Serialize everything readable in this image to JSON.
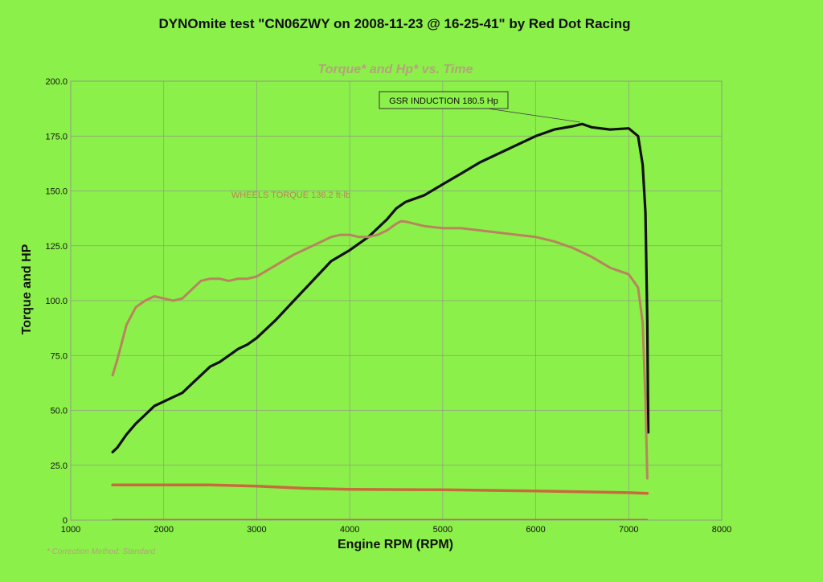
{
  "chart_data": {
    "type": "line",
    "title": "DYNOmite test \"CN06ZWY on 2008-11-23 @ 16-25-41\" by Red Dot Racing",
    "subtitle": "Torque* and Hp* vs. Time",
    "xlabel": "Engine RPM (RPM)",
    "ylabel": "Torque and HP",
    "xlim": [
      1000,
      8000
    ],
    "ylim": [
      0,
      200
    ],
    "xticks": [
      "1000",
      "2000",
      "3000",
      "4000",
      "5000",
      "6000",
      "7000",
      "8000"
    ],
    "yticks": [
      "0",
      "25.0",
      "50.0",
      "75.0",
      "100.0",
      "125.0",
      "150.0",
      "175.0",
      "200.0"
    ],
    "grid": true,
    "legend": "none",
    "series": [
      {
        "color": "#111111",
        "x": [
          1450,
          1500,
          1600,
          1700,
          1800,
          1900,
          2000,
          2100,
          2200,
          2300,
          2400,
          2500,
          2600,
          2700,
          2800,
          2900,
          3000,
          3200,
          3400,
          3600,
          3800,
          4000,
          4200,
          4400,
          4500,
          4600,
          4800,
          5000,
          5200,
          5400,
          5600,
          5800,
          6000,
          6200,
          6400,
          6500,
          6600,
          6800,
          7000,
          7100,
          7150,
          7180,
          7200,
          7210
        ],
        "values": [
          31,
          33,
          39,
          44,
          48,
          52,
          54,
          56,
          58,
          62,
          66,
          70,
          72,
          75,
          78,
          80,
          83,
          91,
          100,
          109,
          118,
          123,
          129,
          137,
          142,
          145,
          148,
          153,
          158,
          163,
          167,
          171,
          175,
          178,
          179.5,
          180.5,
          179,
          178,
          178.5,
          175,
          162,
          140,
          90,
          40
        ]
      },
      {
        "color": "#b8845e",
        "x": [
          1450,
          1500,
          1600,
          1700,
          1800,
          1900,
          2000,
          2100,
          2200,
          2300,
          2400,
          2500,
          2600,
          2700,
          2800,
          2900,
          3000,
          3200,
          3400,
          3600,
          3800,
          3900,
          4000,
          4100,
          4200,
          4300,
          4400,
          4500,
          4550,
          4600,
          4800,
          5000,
          5200,
          5400,
          5600,
          5800,
          6000,
          6200,
          6400,
          6600,
          6800,
          7000,
          7100,
          7150,
          7180,
          7200
        ],
        "values": [
          66,
          73,
          89,
          97,
          100,
          102,
          101,
          100,
          101,
          105,
          109,
          110,
          110,
          109,
          110,
          110,
          111,
          116,
          121,
          125,
          129,
          130,
          130,
          129,
          129,
          130,
          132,
          135,
          136.2,
          136,
          134,
          133,
          133,
          132,
          131,
          130,
          129,
          127,
          124,
          120,
          115,
          112,
          106,
          90,
          55,
          19
        ]
      },
      {
        "color": "#c76b3c",
        "x": [
          1450,
          2000,
          2500,
          3000,
          3500,
          4000,
          5000,
          6000,
          7000,
          7200
        ],
        "values": [
          16,
          16,
          16,
          15.5,
          14.5,
          14,
          13.8,
          13.3,
          12.5,
          12.2
        ]
      },
      {
        "color": "#c76b3c",
        "x": [
          1450,
          7200
        ],
        "values": [
          0.3,
          0.3
        ]
      }
    ],
    "annotations": [
      {
        "text": "GSR INDUCTION 180.5 Hp",
        "x": 6500,
        "y": 180.5
      },
      {
        "text": "WHEELS TORQUE 136.2 ft-lb",
        "x": 4550,
        "y": 136.2
      }
    ],
    "footnote": "* Correction Method: Standard"
  }
}
